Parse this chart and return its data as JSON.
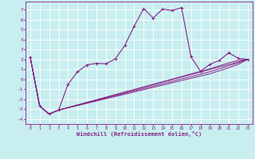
{
  "background_color": "#c8eef0",
  "grid_color": "#aadddd",
  "line_color": "#882288",
  "xlabel": "Windchill (Refroidissement éolien,°C)",
  "xlim": [
    -0.5,
    23.5
  ],
  "ylim": [
    -4.5,
    7.8
  ],
  "yticks": [
    7,
    6,
    5,
    4,
    3,
    2,
    1,
    0,
    -1,
    -2,
    -3,
    -4
  ],
  "xticks": [
    0,
    1,
    2,
    3,
    4,
    5,
    6,
    7,
    8,
    9,
    10,
    11,
    12,
    13,
    14,
    15,
    16,
    17,
    18,
    19,
    20,
    21,
    22,
    23
  ],
  "main_x": [
    0,
    1,
    2,
    3,
    4,
    5,
    6,
    7,
    8,
    9,
    10,
    11,
    12,
    13,
    14,
    15,
    16,
    17,
    18,
    19,
    20,
    21,
    22,
    23
  ],
  "main_y": [
    2.2,
    -2.7,
    -3.5,
    -3.1,
    -0.5,
    0.75,
    1.45,
    1.6,
    1.55,
    2.05,
    3.4,
    5.35,
    7.1,
    6.15,
    7.05,
    6.9,
    7.2,
    2.25,
    0.8,
    1.5,
    1.9,
    2.65,
    2.1,
    2.0
  ],
  "line2_x": [
    0,
    1,
    2,
    3,
    23
  ],
  "line2_y": [
    2.2,
    -2.7,
    -3.5,
    -3.1,
    2.0
  ],
  "line3_x": [
    0,
    1,
    2,
    3,
    19,
    20,
    21,
    22,
    23
  ],
  "line3_y": [
    2.2,
    -2.7,
    -3.5,
    -3.1,
    1.05,
    1.35,
    1.65,
    1.9,
    2.0
  ],
  "line4_x": [
    0,
    1,
    2,
    3,
    19,
    20,
    21,
    22,
    23
  ],
  "line4_y": [
    2.2,
    -2.7,
    -3.5,
    -3.1,
    0.75,
    1.05,
    1.35,
    1.65,
    2.0
  ],
  "line5_x": [
    0,
    1,
    2,
    3,
    19,
    20,
    21,
    22,
    23
  ],
  "line5_y": [
    2.2,
    -2.7,
    -3.5,
    -3.1,
    0.55,
    0.85,
    1.15,
    1.5,
    2.0
  ]
}
